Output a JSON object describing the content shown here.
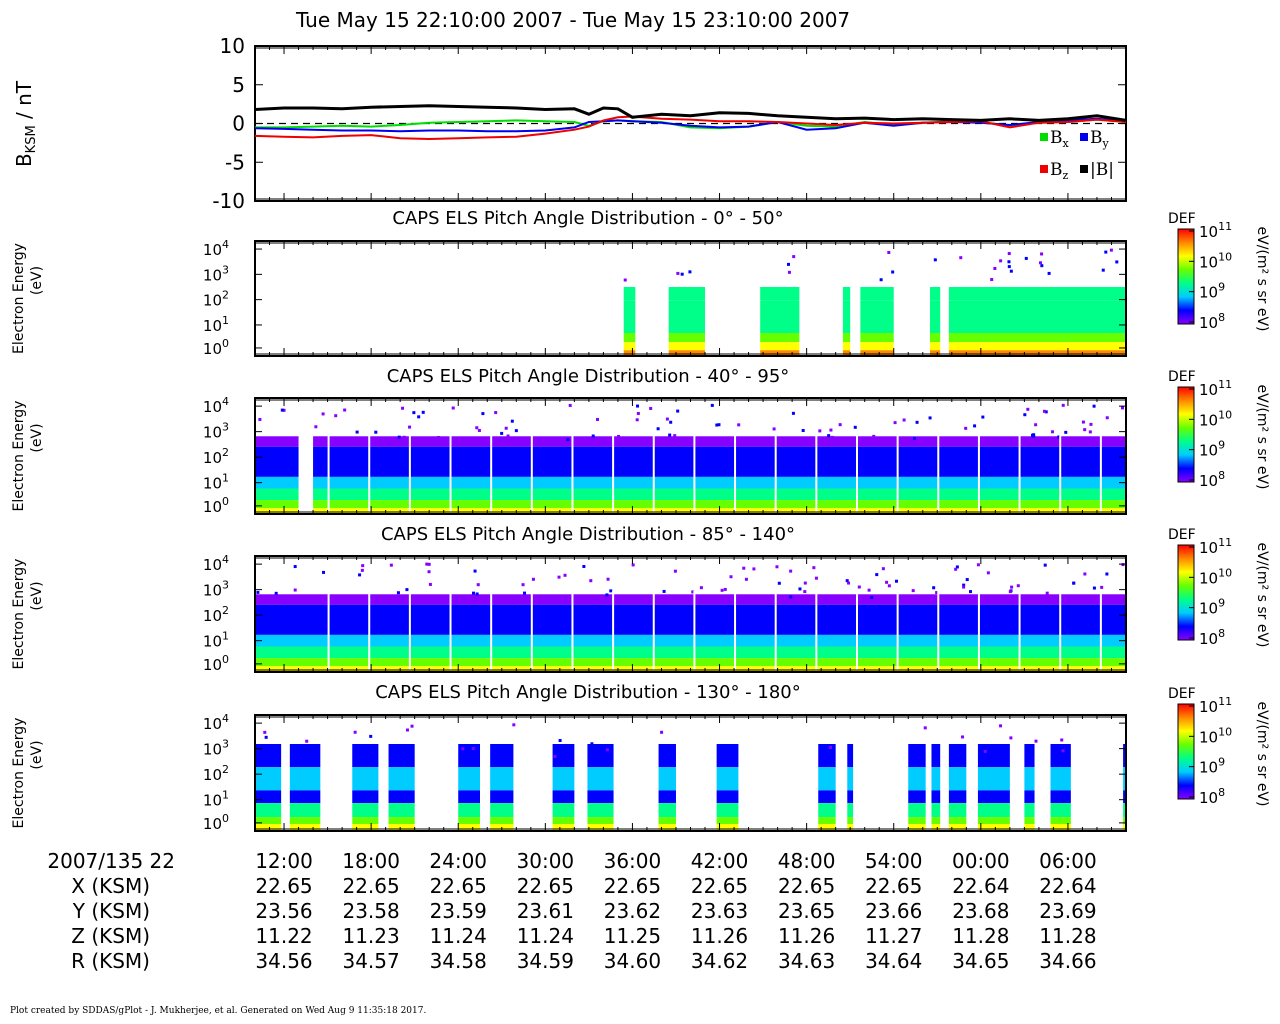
{
  "title": "Tue May 15 22:10:00 2007 - Tue May 15 23:10:00 2007",
  "footer": "Plot created by SDDAS/gPlot - J. Mukherjee, et al.  Generated on Wed Aug 9 11:35:18 2017.",
  "colors": {
    "bx": "#00dd00",
    "by": "#0000ee",
    "bz": "#ee0000",
    "bmag": "#000000",
    "spectrogram_scale": [
      "#8800ff",
      "#0000ff",
      "#00ccff",
      "#00ff88",
      "#66ff00",
      "#ffff00",
      "#ff8800",
      "#ff0000"
    ]
  },
  "time_axis": {
    "label": "2007/135 22",
    "ticks": [
      "12:00",
      "18:00",
      "24:00",
      "30:00",
      "36:00",
      "42:00",
      "48:00",
      "54:00",
      "00:00",
      "06:00"
    ],
    "rows": [
      {
        "label": "X (KSM)",
        "values": [
          "22.65",
          "22.65",
          "22.65",
          "22.65",
          "22.65",
          "22.65",
          "22.65",
          "22.65",
          "22.64",
          "22.64"
        ]
      },
      {
        "label": "Y (KSM)",
        "values": [
          "23.56",
          "23.58",
          "23.59",
          "23.61",
          "23.62",
          "23.63",
          "23.65",
          "23.66",
          "23.68",
          "23.69"
        ]
      },
      {
        "label": "Z (KSM)",
        "values": [
          "11.22",
          "11.23",
          "11.24",
          "11.24",
          "11.25",
          "11.26",
          "11.26",
          "11.27",
          "11.28",
          "11.28"
        ]
      },
      {
        "label": "R (KSM)",
        "values": [
          "34.56",
          "34.57",
          "34.58",
          "34.59",
          "34.60",
          "34.62",
          "34.63",
          "34.64",
          "34.65",
          "34.66"
        ]
      }
    ]
  },
  "chart_data": [
    {
      "type": "line",
      "ylabel": "B_KSM / nT",
      "ylabel_main": "B",
      "ylabel_sub": "KSM",
      "ylabel_tail": " / nT",
      "ylim": [
        -10,
        10
      ],
      "yticks": [
        "10",
        "5",
        "0",
        "-5",
        "-10"
      ],
      "xlim_minutes": [
        0,
        60
      ],
      "legend": [
        {
          "name": "B",
          "sub": "x",
          "key": "bx"
        },
        {
          "name": "B",
          "sub": "y",
          "key": "by"
        },
        {
          "name": "B",
          "sub": "z",
          "key": "bz"
        },
        {
          "name": "|B|",
          "sub": "",
          "key": "bmag"
        }
      ],
      "x": [
        0,
        2,
        4,
        6,
        8,
        10,
        12,
        14,
        16,
        18,
        20,
        22,
        23,
        24,
        25,
        26,
        28,
        30,
        32,
        34,
        36,
        38,
        40,
        42,
        44,
        46,
        48,
        50,
        52,
        54,
        56,
        58,
        60
      ],
      "series": [
        {
          "name": "Bx",
          "values": [
            -0.5,
            -0.5,
            -0.4,
            -0.3,
            -0.4,
            -0.2,
            0.1,
            0.2,
            0.3,
            0.4,
            0.3,
            0.2,
            -0.3,
            0.3,
            0.4,
            0.3,
            0.2,
            -0.5,
            -0.6,
            -0.4,
            0.2,
            -0.3,
            -0.4,
            0.2,
            -0.2,
            0.1,
            0.3,
            0.2,
            -0.3,
            0.1,
            0.2,
            0.5,
            0.2
          ]
        },
        {
          "name": "By",
          "values": [
            -0.6,
            -0.7,
            -0.8,
            -0.9,
            -0.9,
            -1.0,
            -0.9,
            -0.9,
            -1.0,
            -1.0,
            -0.9,
            -0.5,
            0.2,
            0.3,
            0.4,
            0.3,
            0.1,
            -0.3,
            -0.5,
            -0.4,
            0.2,
            -0.8,
            -0.6,
            0.1,
            -0.3,
            0.1,
            0.2,
            0.1,
            -0.2,
            0.2,
            0.4,
            0.6,
            0.3
          ]
        },
        {
          "name": "Bz",
          "values": [
            -1.6,
            -1.7,
            -1.8,
            -1.6,
            -1.5,
            -1.9,
            -2.0,
            -1.9,
            -1.8,
            -1.7,
            -1.3,
            -0.8,
            -0.4,
            0.4,
            0.8,
            0.9,
            0.6,
            0.5,
            0.3,
            0.3,
            0.2,
            0.0,
            -0.2,
            0.1,
            0.0,
            0.1,
            0.2,
            0.3,
            -0.5,
            0.1,
            0.2,
            0.5,
            0.2
          ]
        },
        {
          "name": "|B|",
          "values": [
            1.8,
            2.0,
            2.0,
            1.9,
            2.1,
            2.2,
            2.3,
            2.2,
            2.1,
            2.0,
            1.8,
            1.9,
            1.2,
            2.0,
            1.9,
            0.8,
            1.2,
            1.0,
            1.4,
            1.3,
            1.0,
            0.8,
            0.6,
            0.7,
            0.5,
            0.6,
            0.5,
            0.4,
            0.6,
            0.4,
            0.6,
            1.0,
            0.4
          ]
        }
      ]
    },
    {
      "type": "heatmap",
      "title": "CAPS ELS Pitch Angle Distribution - 0° - 50°",
      "ylabel": "Electron Energy (eV)",
      "ylabel_line1": "Electron Energy",
      "ylabel_line2": "(eV)",
      "colorbar": {
        "label": "DEF",
        "units": "eV/(m² s sr eV)",
        "ticks": [
          "11",
          "10",
          "9",
          "8"
        ],
        "base": "10"
      },
      "yticks": [
        "4",
        "3",
        "2",
        "1",
        "0"
      ],
      "coverage_minutes": [
        [
          25.4,
          26.2
        ],
        [
          28.5,
          31.0
        ],
        [
          34.8,
          37.5
        ],
        [
          40.5,
          41.0
        ],
        [
          41.7,
          44.0
        ],
        [
          46.5,
          47.2
        ],
        [
          47.8,
          60.0
        ]
      ]
    },
    {
      "type": "heatmap",
      "title": "CAPS ELS Pitch Angle Distribution - 40° - 95°",
      "ylabel": "Electron Energy (eV)",
      "ylabel_line1": "Electron Energy",
      "ylabel_line2": "(eV)",
      "colorbar": {
        "label": "DEF",
        "units": "eV/(m² s sr eV)",
        "ticks": [
          "11",
          "10",
          "9",
          "8"
        ],
        "base": "10"
      },
      "yticks": [
        "4",
        "3",
        "2",
        "1",
        "0"
      ],
      "coverage_minutes": [
        [
          0.0,
          3.0
        ],
        [
          4.0,
          60.0
        ]
      ]
    },
    {
      "type": "heatmap",
      "title": "CAPS ELS Pitch Angle Distribution - 85° - 140°",
      "ylabel": "Electron Energy (eV)",
      "ylabel_line1": "Electron Energy",
      "ylabel_line2": "(eV)",
      "colorbar": {
        "label": "DEF",
        "units": "eV/(m² s sr eV)",
        "ticks": [
          "11",
          "10",
          "9",
          "8"
        ],
        "base": "10"
      },
      "yticks": [
        "4",
        "3",
        "2",
        "1",
        "0"
      ],
      "coverage_minutes": [
        [
          0.0,
          60.0
        ]
      ]
    },
    {
      "type": "heatmap",
      "title": "CAPS ELS Pitch Angle Distribution - 130° - 180°",
      "ylabel": "Electron Energy (eV)",
      "ylabel_line1": "Electron Energy",
      "ylabel_line2": "(eV)",
      "colorbar": {
        "label": "DEF",
        "units": "eV/(m² s sr eV)",
        "ticks": [
          "11",
          "10",
          "9",
          "8"
        ],
        "base": "10"
      },
      "yticks": [
        "4",
        "3",
        "2",
        "1",
        "0"
      ],
      "coverage_minutes": [
        [
          0.0,
          1.8
        ],
        [
          2.4,
          4.5
        ],
        [
          6.7,
          8.5
        ],
        [
          9.2,
          11.0
        ],
        [
          14.0,
          15.5
        ],
        [
          16.2,
          17.8
        ],
        [
          20.5,
          22.0
        ],
        [
          22.9,
          24.7
        ],
        [
          27.8,
          29.0
        ],
        [
          31.8,
          33.3
        ],
        [
          38.8,
          40.0
        ],
        [
          40.8,
          41.2
        ],
        [
          45.0,
          46.2
        ],
        [
          46.6,
          47.2
        ],
        [
          47.8,
          49.0
        ],
        [
          49.8,
          52.0
        ],
        [
          53.0,
          53.7
        ],
        [
          54.8,
          56.2
        ],
        [
          59.8,
          60.0
        ]
      ]
    }
  ]
}
